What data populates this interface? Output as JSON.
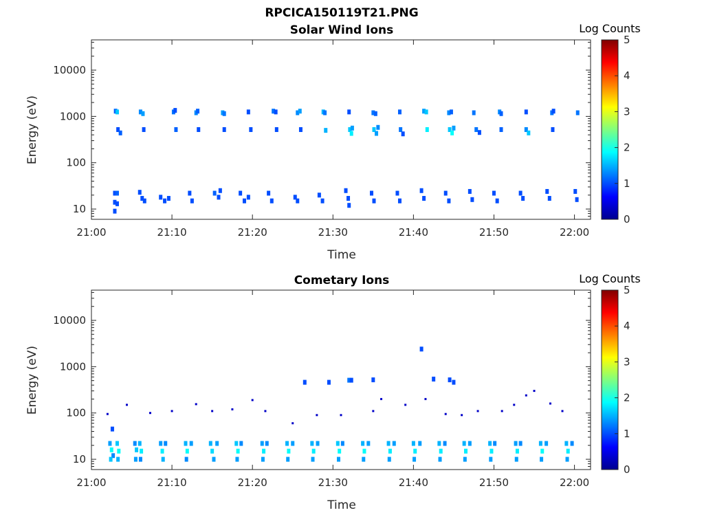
{
  "figure": {
    "main_title": "RPCICA150119T21.PNG"
  },
  "chart_data": [
    {
      "type": "heatmap",
      "title": "Solar Wind Ions",
      "xlabel": "Time",
      "ylabel": "Energy (eV)",
      "y_scale": "log",
      "ylim": [
        6,
        45000
      ],
      "xlim_min": [
        0,
        62
      ],
      "x_ticks": [
        "21:00",
        "21:10",
        "21:20",
        "21:30",
        "21:40",
        "21:50",
        "22:00"
      ],
      "y_ticks": [
        "10",
        "100",
        "1000",
        "10000"
      ],
      "colorbar": {
        "label": "Log Counts",
        "min": 0,
        "max": 5,
        "ticks": [
          "0",
          "1",
          "2",
          "3",
          "4",
          "5"
        ]
      },
      "cells": [
        [
          3.0,
          1300,
          1.1
        ],
        [
          3.2,
          1250,
          1.6
        ],
        [
          6.1,
          1250,
          1.3
        ],
        [
          6.4,
          1150,
          1.4
        ],
        [
          10.2,
          1250,
          1.2
        ],
        [
          10.4,
          1350,
          1.0
        ],
        [
          13.0,
          1200,
          1.3
        ],
        [
          13.2,
          1300,
          1.1
        ],
        [
          16.3,
          1200,
          1.4
        ],
        [
          16.5,
          1150,
          1.2
        ],
        [
          19.5,
          1250,
          1.0
        ],
        [
          22.6,
          1300,
          1.2
        ],
        [
          22.9,
          1250,
          1.0
        ],
        [
          25.6,
          1200,
          1.3
        ],
        [
          25.9,
          1300,
          1.4
        ],
        [
          28.8,
          1250,
          1.5
        ],
        [
          29.0,
          1200,
          1.2
        ],
        [
          32.0,
          1250,
          1.0
        ],
        [
          35.0,
          1200,
          1.2
        ],
        [
          35.3,
          1150,
          1.1
        ],
        [
          38.3,
          1250,
          1.1
        ],
        [
          41.3,
          1300,
          1.4
        ],
        [
          41.6,
          1250,
          1.6
        ],
        [
          44.4,
          1200,
          1.3
        ],
        [
          44.7,
          1250,
          1.1
        ],
        [
          47.5,
          1200,
          1.2
        ],
        [
          50.7,
          1250,
          1.3
        ],
        [
          50.9,
          1150,
          1.1
        ],
        [
          54.0,
          1250,
          1.0
        ],
        [
          57.2,
          1200,
          1.2
        ],
        [
          57.4,
          1300,
          1.0
        ],
        [
          60.4,
          1200,
          1.2
        ],
        [
          3.3,
          520,
          1.0
        ],
        [
          3.6,
          440,
          1.1
        ],
        [
          6.5,
          520,
          1.0
        ],
        [
          10.5,
          520,
          1.1
        ],
        [
          13.3,
          520,
          1.0
        ],
        [
          16.5,
          520,
          1.0
        ],
        [
          19.8,
          520,
          1.0
        ],
        [
          23.0,
          520,
          1.0
        ],
        [
          26.0,
          520,
          1.0
        ],
        [
          29.1,
          500,
          1.5
        ],
        [
          32.1,
          520,
          1.6
        ],
        [
          32.3,
          430,
          1.8
        ],
        [
          32.4,
          560,
          1.4
        ],
        [
          35.1,
          520,
          1.6
        ],
        [
          35.4,
          430,
          1.4
        ],
        [
          35.6,
          580,
          1.3
        ],
        [
          38.4,
          520,
          1.2
        ],
        [
          38.7,
          420,
          1.0
        ],
        [
          41.7,
          520,
          1.8
        ],
        [
          44.5,
          520,
          1.6
        ],
        [
          44.8,
          440,
          1.9
        ],
        [
          45.0,
          560,
          1.4
        ],
        [
          47.8,
          520,
          1.2
        ],
        [
          48.2,
          450,
          1.0
        ],
        [
          50.9,
          520,
          1.1
        ],
        [
          54.0,
          520,
          1.3
        ],
        [
          54.3,
          440,
          1.6
        ],
        [
          57.3,
          520,
          1.0
        ],
        [
          2.9,
          22,
          1.0
        ],
        [
          2.9,
          14,
          1.0
        ],
        [
          3.2,
          22,
          1.1
        ],
        [
          3.2,
          13,
          1.0
        ],
        [
          2.9,
          9,
          1.0
        ],
        [
          6.0,
          23,
          1.0
        ],
        [
          6.3,
          17,
          1.0
        ],
        [
          6.6,
          15,
          1.0
        ],
        [
          8.6,
          18,
          1.0
        ],
        [
          9.1,
          15,
          1.0
        ],
        [
          9.6,
          17,
          1.0
        ],
        [
          12.2,
          22,
          1.0
        ],
        [
          12.5,
          15,
          1.0
        ],
        [
          15.3,
          22,
          1.1
        ],
        [
          15.8,
          18,
          1.0
        ],
        [
          16.0,
          25,
          1.0
        ],
        [
          18.5,
          22,
          1.0
        ],
        [
          19.0,
          15,
          1.0
        ],
        [
          19.5,
          18,
          1.0
        ],
        [
          22.0,
          22,
          1.0
        ],
        [
          22.4,
          15,
          1.0
        ],
        [
          25.3,
          18,
          1.0
        ],
        [
          25.6,
          15,
          1.0
        ],
        [
          28.3,
          20,
          1.0
        ],
        [
          28.7,
          15,
          1.0
        ],
        [
          31.6,
          25,
          1.0
        ],
        [
          31.9,
          17,
          1.0
        ],
        [
          32.0,
          12,
          1.0
        ],
        [
          34.8,
          22,
          1.0
        ],
        [
          35.1,
          15,
          1.0
        ],
        [
          38.0,
          22,
          1.0
        ],
        [
          38.3,
          15,
          1.0
        ],
        [
          41.0,
          25,
          1.0
        ],
        [
          41.3,
          17,
          1.0
        ],
        [
          44.0,
          22,
          1.0
        ],
        [
          44.4,
          15,
          1.0
        ],
        [
          47.0,
          24,
          1.0
        ],
        [
          47.3,
          16,
          1.0
        ],
        [
          50.0,
          22,
          1.0
        ],
        [
          50.4,
          15,
          1.0
        ],
        [
          53.3,
          22,
          1.0
        ],
        [
          53.6,
          17,
          1.0
        ],
        [
          56.6,
          24,
          1.0
        ],
        [
          56.9,
          17,
          1.0
        ],
        [
          60.1,
          24,
          1.0
        ],
        [
          60.3,
          16,
          1.0
        ]
      ]
    },
    {
      "type": "heatmap",
      "title": "Cometary Ions",
      "xlabel": "Time",
      "ylabel": "Energy (eV)",
      "y_scale": "log",
      "ylim": [
        6,
        45000
      ],
      "xlim_min": [
        0,
        62
      ],
      "x_ticks": [
        "21:00",
        "21:10",
        "21:20",
        "21:30",
        "21:40",
        "21:50",
        "22:00"
      ],
      "y_ticks": [
        "10",
        "100",
        "1000",
        "10000"
      ],
      "colorbar": {
        "label": "Log Counts",
        "min": 0,
        "max": 5,
        "ticks": [
          "0",
          "1",
          "2",
          "3",
          "4",
          "5"
        ]
      },
      "cells": [
        [
          2.3,
          22,
          1.4
        ],
        [
          2.5,
          16,
          1.9
        ],
        [
          2.7,
          12,
          1.3
        ],
        [
          2.4,
          10,
          1.6
        ],
        [
          2.6,
          45,
          1.0
        ],
        [
          3.2,
          22,
          1.6
        ],
        [
          3.4,
          15,
          1.9
        ],
        [
          3.3,
          10,
          1.5
        ],
        [
          5.4,
          22,
          1.3
        ],
        [
          5.6,
          16,
          1.6
        ],
        [
          5.5,
          10,
          1.4
        ],
        [
          6.0,
          22,
          1.5
        ],
        [
          6.2,
          15,
          1.8
        ],
        [
          6.1,
          10,
          1.3
        ],
        [
          8.6,
          22,
          1.4
        ],
        [
          8.8,
          15,
          1.8
        ],
        [
          8.9,
          10,
          1.5
        ],
        [
          9.2,
          22,
          1.3
        ],
        [
          11.7,
          22,
          1.5
        ],
        [
          11.9,
          15,
          1.9
        ],
        [
          11.8,
          10,
          1.3
        ],
        [
          12.4,
          22,
          1.4
        ],
        [
          14.8,
          22,
          1.5
        ],
        [
          15.0,
          15,
          1.7
        ],
        [
          15.2,
          10,
          1.4
        ],
        [
          15.6,
          22,
          1.4
        ],
        [
          18.0,
          22,
          1.6
        ],
        [
          18.2,
          15,
          1.9
        ],
        [
          18.1,
          10,
          1.4
        ],
        [
          18.6,
          22,
          1.3
        ],
        [
          21.2,
          22,
          1.4
        ],
        [
          21.4,
          15,
          1.8
        ],
        [
          21.3,
          10,
          1.4
        ],
        [
          21.8,
          22,
          1.3
        ],
        [
          24.3,
          22,
          1.5
        ],
        [
          24.5,
          15,
          1.9
        ],
        [
          24.4,
          10,
          1.4
        ],
        [
          25.0,
          22,
          1.4
        ],
        [
          27.4,
          22,
          1.5
        ],
        [
          27.6,
          15,
          1.8
        ],
        [
          27.5,
          10,
          1.4
        ],
        [
          28.1,
          22,
          1.4
        ],
        [
          30.6,
          22,
          1.6
        ],
        [
          30.8,
          15,
          1.9
        ],
        [
          30.7,
          10,
          1.4
        ],
        [
          31.2,
          22,
          1.3
        ],
        [
          33.7,
          22,
          1.5
        ],
        [
          33.9,
          15,
          1.9
        ],
        [
          33.8,
          10,
          1.4
        ],
        [
          34.4,
          22,
          1.4
        ],
        [
          36.9,
          22,
          1.5
        ],
        [
          37.1,
          15,
          1.8
        ],
        [
          37.0,
          10,
          1.4
        ],
        [
          37.6,
          22,
          1.4
        ],
        [
          40.0,
          22,
          1.5
        ],
        [
          40.2,
          15,
          1.8
        ],
        [
          40.1,
          10,
          1.4
        ],
        [
          40.8,
          22,
          1.4
        ],
        [
          43.2,
          22,
          1.5
        ],
        [
          43.4,
          15,
          1.8
        ],
        [
          43.3,
          10,
          1.4
        ],
        [
          43.9,
          22,
          1.3
        ],
        [
          46.3,
          22,
          1.5
        ],
        [
          46.5,
          15,
          1.8
        ],
        [
          46.4,
          10,
          1.4
        ],
        [
          47.0,
          22,
          1.4
        ],
        [
          49.5,
          22,
          1.5
        ],
        [
          49.7,
          15,
          1.8
        ],
        [
          49.6,
          10,
          1.4
        ],
        [
          50.1,
          22,
          1.3
        ],
        [
          52.7,
          22,
          1.4
        ],
        [
          52.9,
          15,
          1.8
        ],
        [
          52.8,
          10,
          1.4
        ],
        [
          53.3,
          22,
          1.3
        ],
        [
          55.8,
          22,
          1.5
        ],
        [
          56.0,
          15,
          1.9
        ],
        [
          55.9,
          10,
          1.4
        ],
        [
          56.5,
          22,
          1.4
        ],
        [
          59.0,
          22,
          1.5
        ],
        [
          59.2,
          15,
          1.8
        ],
        [
          59.1,
          10,
          1.4
        ],
        [
          59.7,
          22,
          1.3
        ],
        [
          32.0,
          510,
          1.2
        ],
        [
          32.3,
          510,
          1.0
        ],
        [
          35.0,
          520,
          1.0
        ],
        [
          44.5,
          520,
          1.0
        ],
        [
          45.0,
          460,
          1.0
        ],
        [
          41.0,
          2400,
          1.0
        ],
        [
          26.5,
          460,
          1.0
        ],
        [
          29.5,
          460,
          1.0
        ],
        [
          42.5,
          540,
          1.0
        ]
      ],
      "scatter_plumes": [
        [
          2.0,
          95
        ],
        [
          4.4,
          150
        ],
        [
          7.3,
          100
        ],
        [
          10.0,
          110
        ],
        [
          13.0,
          155
        ],
        [
          15.0,
          110
        ],
        [
          17.5,
          120
        ],
        [
          20.0,
          190
        ],
        [
          21.6,
          110
        ],
        [
          25.0,
          60
        ],
        [
          28.0,
          90
        ],
        [
          31.0,
          90
        ],
        [
          35.0,
          110
        ],
        [
          36.0,
          200
        ],
        [
          39.0,
          150
        ],
        [
          41.5,
          200
        ],
        [
          44.0,
          95
        ],
        [
          46.0,
          90
        ],
        [
          48.0,
          110
        ],
        [
          51.0,
          110
        ],
        [
          52.5,
          150
        ],
        [
          54.0,
          240
        ],
        [
          55.0,
          300
        ],
        [
          57.0,
          160
        ],
        [
          58.5,
          110
        ]
      ]
    }
  ]
}
